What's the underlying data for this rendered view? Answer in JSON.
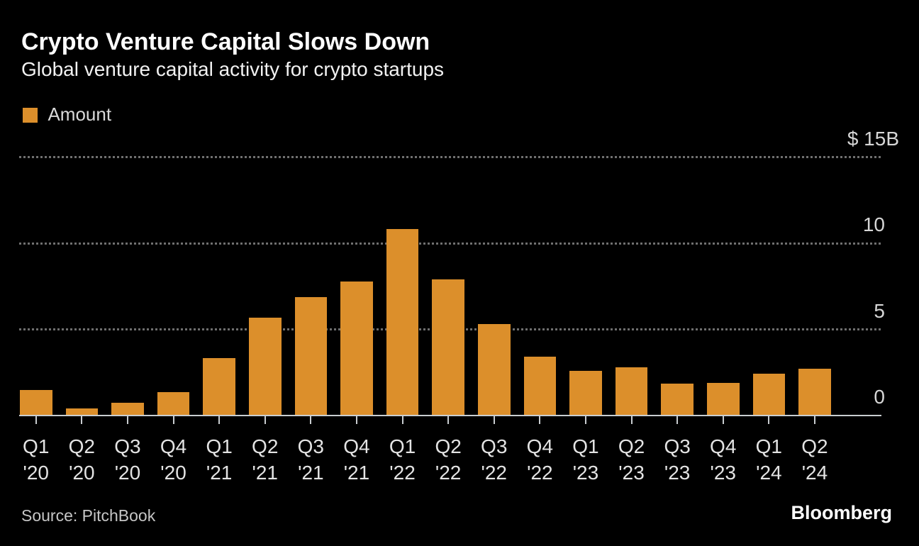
{
  "header": {
    "title": "Crypto Venture Capital Slows Down",
    "subtitle": "Global venture capital activity for crypto startups"
  },
  "legend": {
    "items": [
      {
        "label": "Amount",
        "color": "#DC8F2B"
      }
    ]
  },
  "footer": {
    "source": "Source: PitchBook",
    "brand": "Bloomberg"
  },
  "colors": {
    "background": "#000000",
    "bar": "#DC8F2B",
    "axis": "#C9CDD0",
    "grid": "#6F6F6F",
    "title_text": "#FFFFFF",
    "muted_text": "#D6D6D6"
  },
  "chart_data": {
    "type": "bar",
    "title": "Crypto Venture Capital Slows Down",
    "subtitle": "Global venture capital activity for crypto startups",
    "series_name": "Amount",
    "unit": "billions USD",
    "categories": [
      "Q1 '20",
      "Q2 '20",
      "Q3 '20",
      "Q4 '20",
      "Q1 '21",
      "Q2 '21",
      "Q3 '21",
      "Q4 '21",
      "Q1 '22",
      "Q2 '22",
      "Q3 '22",
      "Q4 '22",
      "Q1 '23",
      "Q2 '23",
      "Q3 '23",
      "Q4 '23",
      "Q1 '24",
      "Q2 '24"
    ],
    "values": [
      1.5,
      0.4,
      0.75,
      1.35,
      3.35,
      5.7,
      6.9,
      7.8,
      10.85,
      7.9,
      5.3,
      3.4,
      2.6,
      2.8,
      1.85,
      1.9,
      2.45,
      2.7
    ],
    "ylim": [
      0,
      15
    ],
    "yticks": [
      {
        "value": 15,
        "label": "$ 15B"
      },
      {
        "value": 10,
        "label": "10"
      },
      {
        "value": 5,
        "label": "5"
      },
      {
        "value": 0,
        "label": "0"
      }
    ],
    "grid": "horizontal dotted",
    "legend_position": "top-left",
    "source": "PitchBook"
  }
}
